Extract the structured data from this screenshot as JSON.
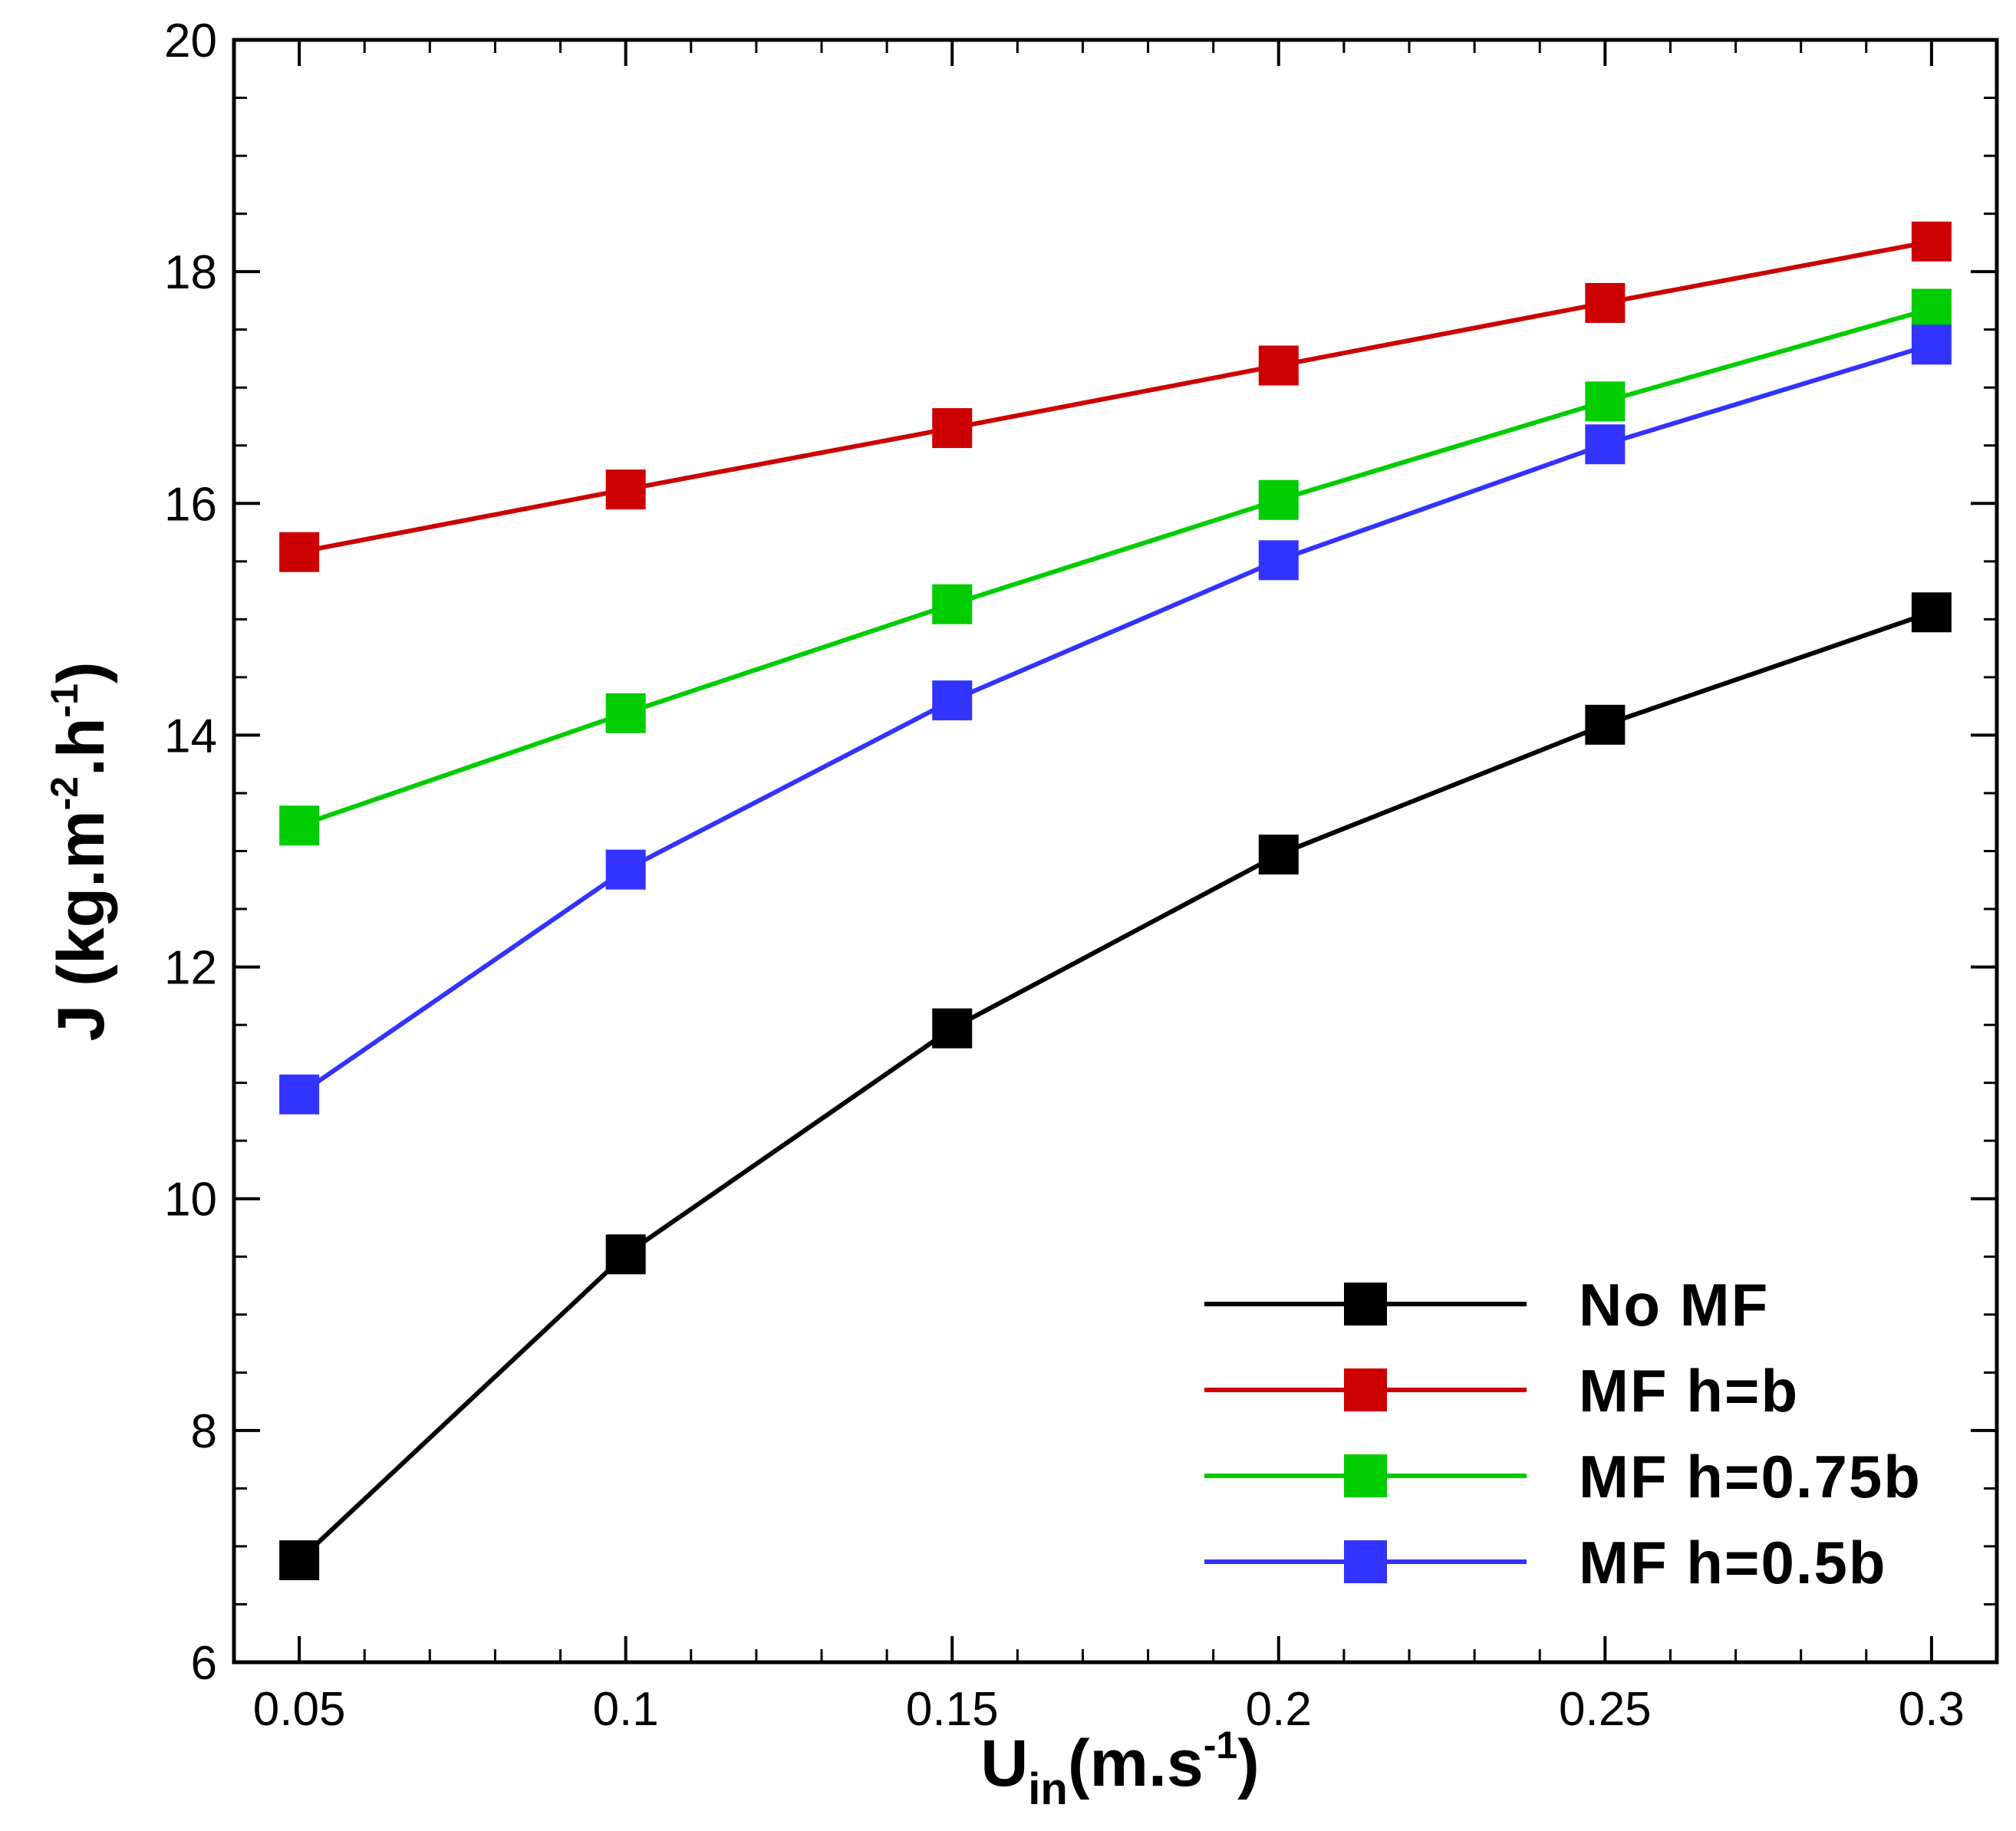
{
  "chart_data": {
    "type": "line",
    "title": "",
    "x": [
      0.05,
      0.1,
      0.15,
      0.2,
      0.25,
      0.3
    ],
    "x_tick_labels": [
      "0.05",
      "0.1",
      "0.15",
      "0.2",
      "0.25",
      "0.3"
    ],
    "y_tick_labels": [
      "6",
      "8",
      "10",
      "12",
      "14",
      "16",
      "18",
      "20"
    ],
    "xlim": [
      0.04,
      0.31
    ],
    "ylim": [
      6,
      20
    ],
    "x_minor_step": 0.01,
    "y_minor_step": 0.5,
    "xlabel": {
      "main": "U",
      "sub": "in",
      "rest": "(m.s",
      "sup": "-1",
      "end": ")"
    },
    "ylabel": {
      "p1": "J (kg.m",
      "s1": "-2",
      "p2": ".h",
      "s2": "-1",
      "p3": ")"
    },
    "grid": false,
    "legend_position": "bottom-right",
    "series": [
      {
        "name": "No MF",
        "color": "#000000",
        "values": [
          6.88,
          9.52,
          11.47,
          12.97,
          14.09,
          15.06
        ]
      },
      {
        "name": "MF h=b",
        "color": "#cc0000",
        "values": [
          15.58,
          16.12,
          16.65,
          17.19,
          17.73,
          18.26
        ]
      },
      {
        "name": "MF h=0.75b",
        "color": "#00cc00",
        "values": [
          13.22,
          14.19,
          15.13,
          16.03,
          16.88,
          17.68
        ]
      },
      {
        "name": "MF h=0.5b",
        "color": "#3333ff",
        "values": [
          10.9,
          12.84,
          14.3,
          15.51,
          16.51,
          17.37
        ]
      }
    ]
  }
}
